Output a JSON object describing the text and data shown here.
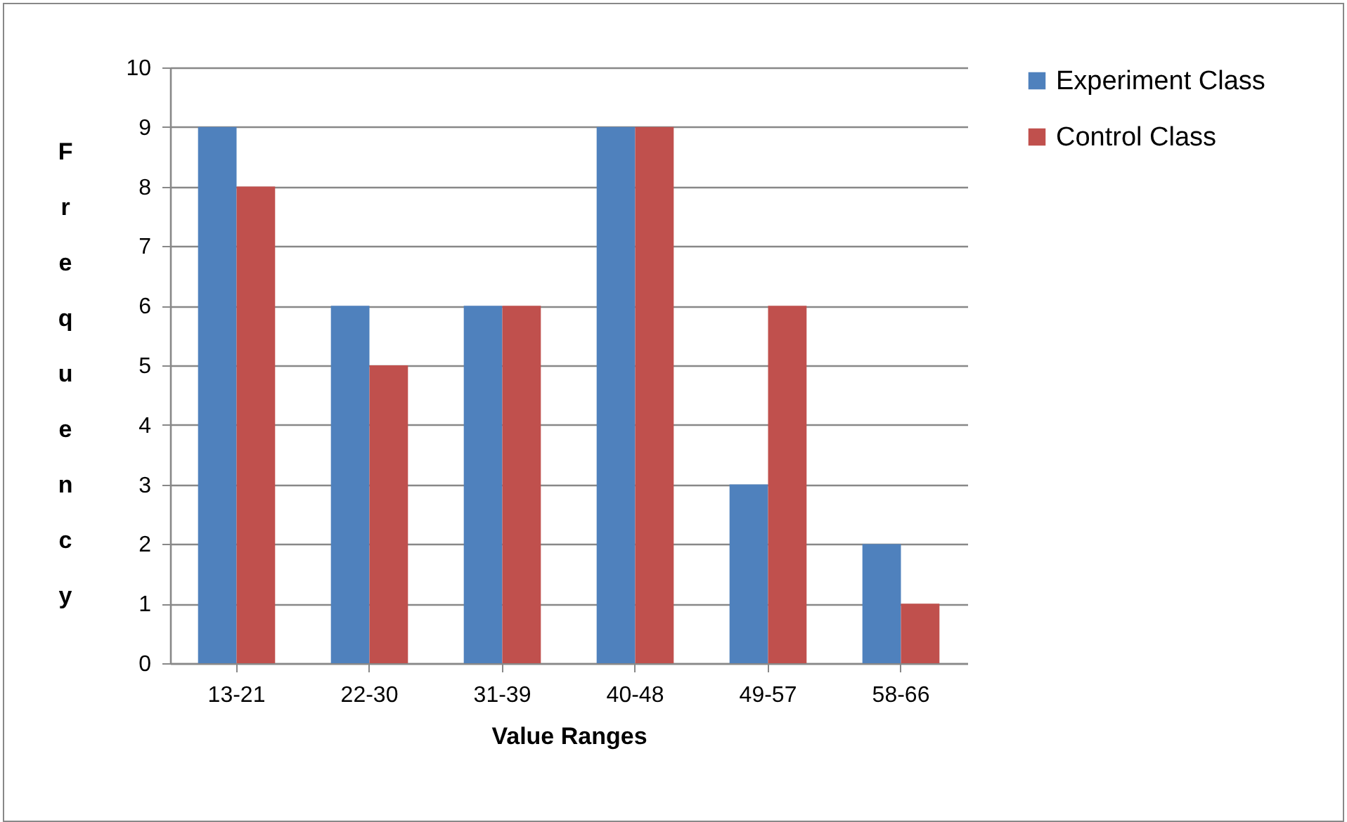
{
  "chart_data": {
    "type": "bar",
    "xlabel": "Value Ranges",
    "ylabel": "Frequency",
    "categories": [
      "13-21",
      "22-30",
      "31-39",
      "40-48",
      "49-57",
      "58-66"
    ],
    "series": [
      {
        "name": "Experiment Class",
        "color": "#4f81bd",
        "values": [
          9,
          6,
          6,
          9,
          3,
          2
        ]
      },
      {
        "name": "Control Class",
        "color": "#c0504d",
        "values": [
          8,
          5,
          6,
          9,
          6,
          1
        ]
      }
    ],
    "ylim": [
      0,
      10
    ],
    "yticks": [
      0,
      1,
      2,
      3,
      4,
      5,
      6,
      7,
      8,
      9,
      10
    ],
    "grid": "y",
    "legend": "right"
  }
}
